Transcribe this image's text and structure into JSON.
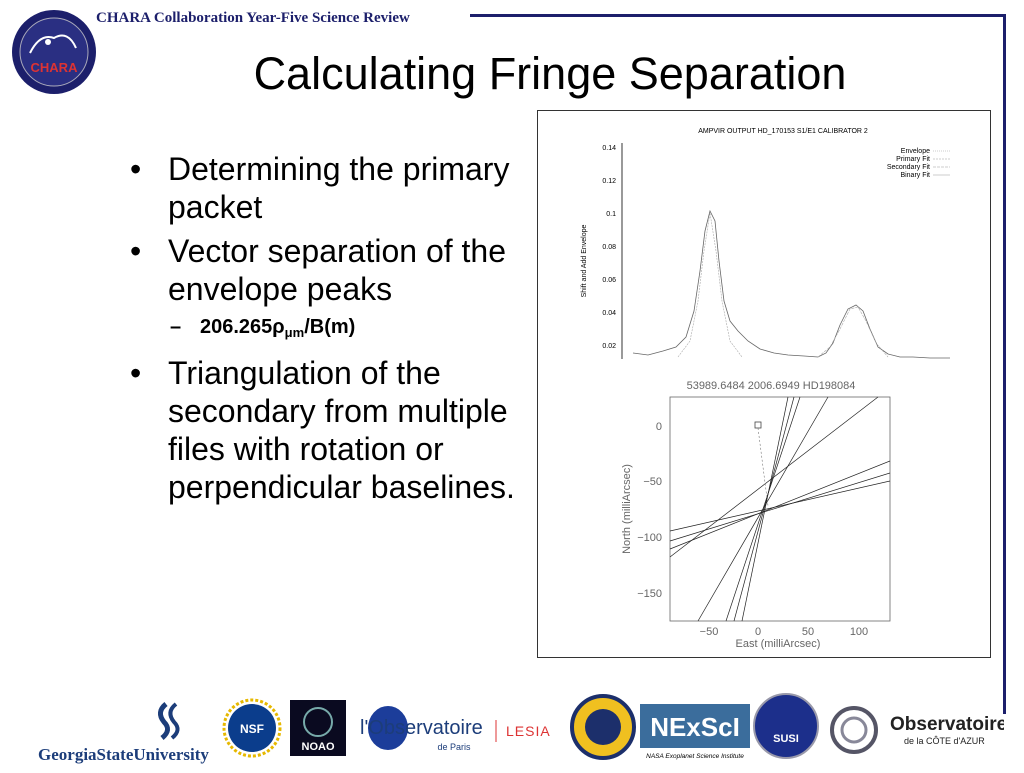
{
  "header": {
    "text": "CHARA Collaboration Year-Five Science Review",
    "logo_text": "CHARA"
  },
  "title": "Calculating Fringe Separation",
  "bullets": [
    "Determining the primary packet",
    "Vector separation of the envelope peaks"
  ],
  "subbullet": {
    "prefix": "206.265",
    "rho": "ρ",
    "mu": "μ",
    "m": "m",
    "suffix": "/B(m)"
  },
  "bullets2": [
    "Triangulation of the secondary from multiple files with rotation or perpendicular baselines."
  ],
  "chart_data": [
    {
      "type": "line",
      "title": "AMPVIR OUTPUT HD_170153 S1/E1 CALIBRATOR 2",
      "ylabel": "Shift and Add Envelope",
      "xlabel": "",
      "ylim": [
        0,
        0.14
      ],
      "yticks": [
        "0.14",
        "0.12",
        "0.1",
        "0.08",
        "0.06",
        "0.04",
        "0.02"
      ],
      "legend": [
        "Envelope",
        "Primary Fit",
        "Secondary Fit",
        "Binary Fit"
      ],
      "legend_position": "top-right",
      "series": [
        {
          "name": "Envelope",
          "description_peaks": [
            0.1,
            0.04
          ]
        }
      ]
    },
    {
      "type": "line",
      "title": "53989.6484  2006.6949  HD198084",
      "xlabel": "East (milliArcsec)",
      "ylabel": "North (milliArcsec)",
      "xticks": [
        "−50",
        "0",
        "50",
        "100"
      ],
      "yticks": [
        "0",
        "−50",
        "−100",
        "−150"
      ],
      "xlim": [
        -85,
        110
      ],
      "ylim": [
        -182,
        12
      ],
      "intersection": [
        9,
        -73
      ],
      "marker": [
        1,
        0
      ]
    }
  ],
  "footer": {
    "gsu": "GeorgiaStateUniversity",
    "nsf": "NSF",
    "noao": "NOAO",
    "obs_paris_1": "l'Observatoire",
    "obs_paris_2": "de Paris",
    "lesia": "LESIA",
    "nexsci": "NExScI",
    "nexsci_sub": "NASA Exoplanet Science Institute",
    "susi": "SUSI",
    "oca_1": "Observatoire",
    "oca_2": "de la CÔTE d'AZUR"
  }
}
